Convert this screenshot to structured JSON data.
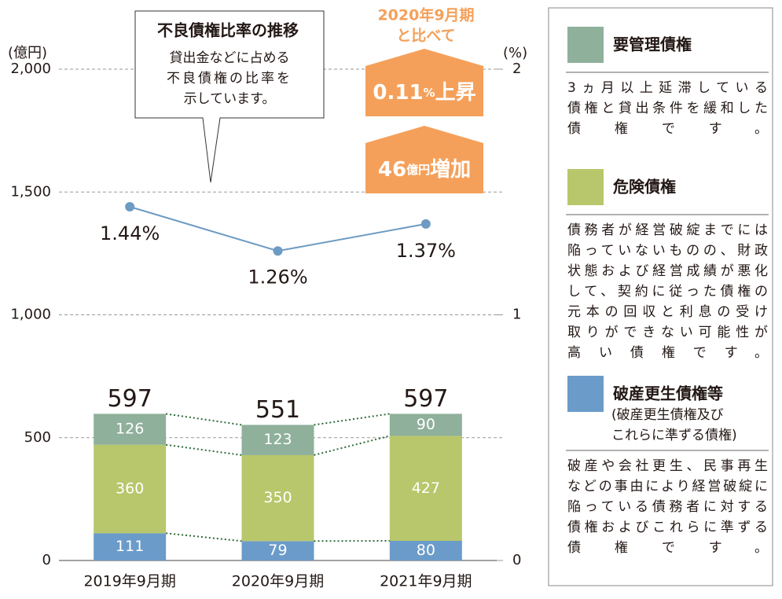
{
  "chart_data": {
    "type": "combo",
    "stacked": true,
    "categories": [
      "2019年9月期",
      "2020年9月期",
      "2021年9月期"
    ],
    "series": [
      {
        "name": "破産更生債権等",
        "color": "#6b9bc9",
        "values": [
          111,
          79,
          80
        ],
        "note": [
          "(破産更生債権及び",
          "これらに準ずる債権)"
        ],
        "description": [
          "破産や会社更生、民事再生",
          "などの事由により経営破綻に",
          "陥っている債務者に対する",
          "債権およびこれらに準ずる",
          "債権です。"
        ]
      },
      {
        "name": "危険債権",
        "color": "#b8c76b",
        "values": [
          360,
          350,
          427
        ],
        "description": [
          "債務者が経営破綻までには",
          "陥っていないものの、財政",
          "状態および経営成績が悪化",
          "して、契約に従った債権の",
          "元本の回収と利息の受け",
          "取りができない可能性が",
          "高い債権です。"
        ]
      },
      {
        "name": "要管理債権",
        "color": "#8fb09b",
        "values": [
          126,
          123,
          90
        ],
        "description": [
          "3ヵ月以上延滞している",
          "債権と貸出条件を緩和した",
          "債権です。"
        ]
      },
      {
        "name": "不良債権比率の推移",
        "type": "line",
        "axis": "y2",
        "color": "#6d9bc3",
        "values": [
          1.44,
          1.26,
          1.37
        ],
        "value_labels": [
          "1.44%",
          "1.26%",
          "1.37%"
        ],
        "description": [
          "貸出金などに占める",
          "不良債権の比率を",
          "示しています。"
        ]
      }
    ],
    "totals": [
      597,
      551,
      597
    ],
    "y_label": "(億円)",
    "y2_label": "(%)",
    "ylim": [
      0,
      2000
    ],
    "yticks": [
      0,
      500,
      {
        "value": 1000,
        "label": "1,000"
      },
      {
        "value": 1500,
        "label": "1,500"
      },
      {
        "value": 2000,
        "label": "2,000"
      }
    ],
    "y2lim": [
      0,
      2
    ],
    "y2ticks": [
      0,
      1,
      2
    ],
    "grid": true,
    "comparison": {
      "lines": [
        "2020年9月期",
        "と比べて"
      ],
      "badges": [
        {
          "number": "0.11",
          "unit": "%",
          "text": "上昇"
        },
        {
          "number": "46",
          "unit": "億円",
          "text": "増加"
        }
      ]
    }
  }
}
